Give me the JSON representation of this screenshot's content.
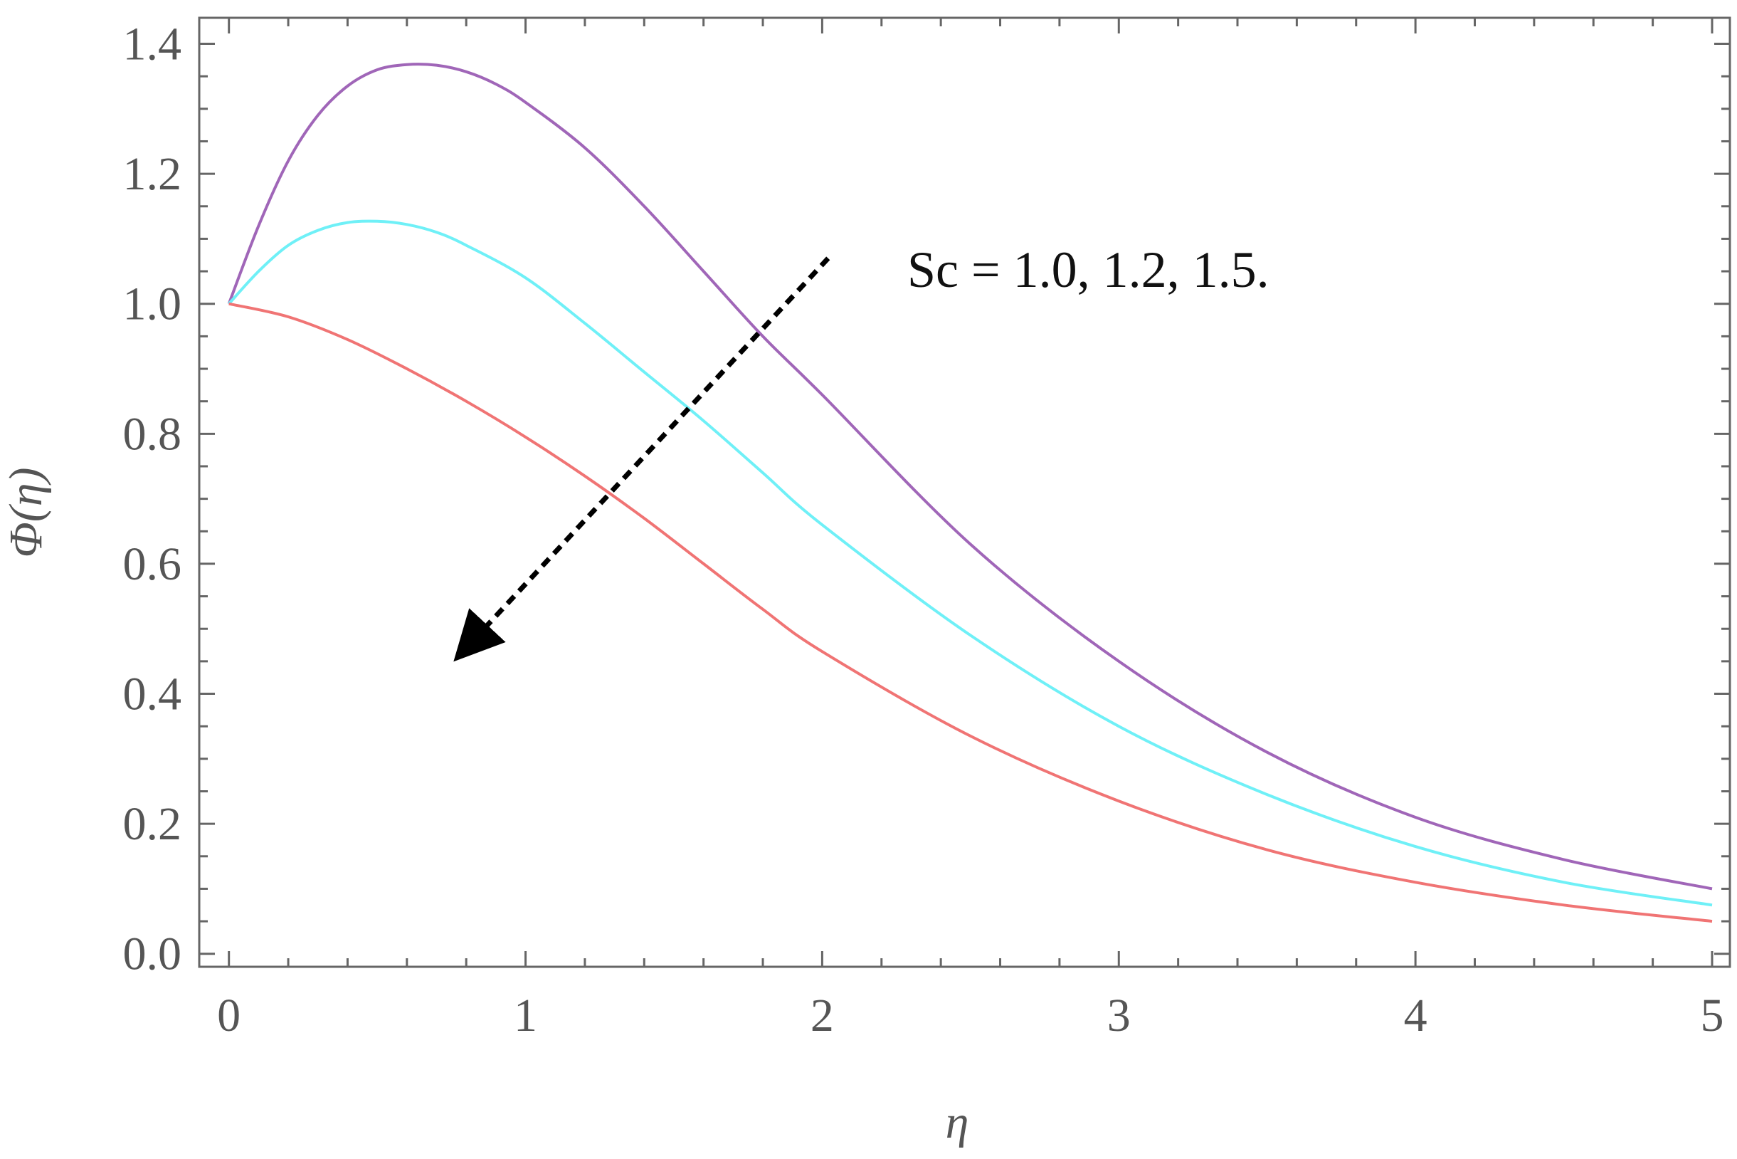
{
  "chart_data": {
    "type": "line",
    "xlabel": "η",
    "ylabel": "Φ(η)",
    "xlim": [
      -0.1,
      5.06
    ],
    "ylim": [
      -0.02,
      1.44
    ],
    "x_ticks": [
      0,
      1,
      2,
      3,
      4,
      5
    ],
    "y_ticks": [
      0.0,
      0.2,
      0.4,
      0.6,
      0.8,
      1.0,
      1.2,
      1.4
    ],
    "x_tick_labels": [
      "0",
      "1",
      "2",
      "3",
      "4",
      "5"
    ],
    "y_tick_labels": [
      "0.0",
      "0.2",
      "0.4",
      "0.6",
      "0.8",
      "1.0",
      "1.2",
      "1.4"
    ],
    "grid": false,
    "annotation": {
      "text": "Sc = 1.0, 1.2, 1.5."
    },
    "arrow": {
      "from": [
        2.02,
        1.07
      ],
      "to": [
        0.86,
        0.5
      ]
    },
    "series": [
      {
        "color": "#a066b8",
        "x": [
          0,
          0.1,
          0.2,
          0.3,
          0.4,
          0.5,
          0.6,
          0.7,
          0.8,
          0.9,
          1.0,
          1.2,
          1.4,
          1.6,
          1.8,
          2.0,
          2.5,
          3.0,
          3.5,
          4.0,
          4.5,
          5.0
        ],
        "y": [
          1.0,
          1.12,
          1.22,
          1.29,
          1.335,
          1.36,
          1.368,
          1.367,
          1.357,
          1.338,
          1.31,
          1.24,
          1.15,
          1.05,
          0.95,
          0.86,
          0.63,
          0.45,
          0.31,
          0.21,
          0.145,
          0.1
        ]
      },
      {
        "color": "#6ff0f7",
        "x": [
          0,
          0.1,
          0.2,
          0.3,
          0.4,
          0.5,
          0.6,
          0.7,
          0.8,
          1.0,
          1.2,
          1.4,
          1.6,
          1.8,
          2.0,
          2.5,
          3.0,
          3.5,
          4.0,
          4.5,
          5.0
        ],
        "y": [
          1.0,
          1.05,
          1.09,
          1.113,
          1.125,
          1.127,
          1.122,
          1.11,
          1.09,
          1.04,
          0.97,
          0.895,
          0.82,
          0.74,
          0.66,
          0.49,
          0.35,
          0.245,
          0.165,
          0.11,
          0.075
        ]
      },
      {
        "color": "#f07474",
        "x": [
          0,
          0.2,
          0.4,
          0.6,
          0.8,
          1.0,
          1.2,
          1.4,
          1.6,
          1.8,
          2.0,
          2.5,
          3.0,
          3.5,
          4.0,
          4.5,
          5.0
        ],
        "y": [
          1.0,
          0.98,
          0.945,
          0.9,
          0.85,
          0.795,
          0.735,
          0.67,
          0.6,
          0.53,
          0.465,
          0.335,
          0.235,
          0.16,
          0.11,
          0.075,
          0.05
        ]
      }
    ]
  }
}
